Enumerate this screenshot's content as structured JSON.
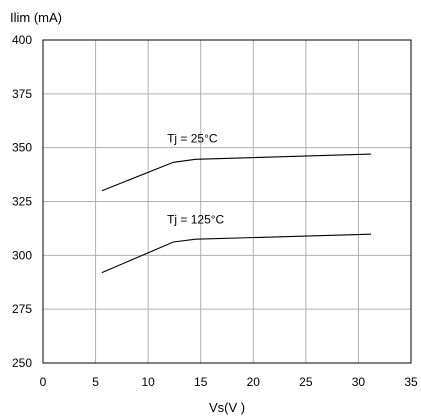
{
  "chart_data": {
    "type": "line",
    "xlabel": "Vs(V )",
    "ylabel": "Ilim (mA)",
    "xlim": [
      0,
      35
    ],
    "ylim": [
      250,
      400
    ],
    "x_ticks": [
      0,
      5,
      10,
      15,
      20,
      25,
      30,
      35
    ],
    "y_ticks": [
      250,
      275,
      300,
      325,
      350,
      375,
      400
    ],
    "grid": true,
    "series": [
      {
        "name": "Tj = 25°C",
        "x": [
          5.6,
          12.4,
          14.5,
          31.2
        ],
        "y": [
          330,
          343.2,
          344.6,
          347
        ]
      },
      {
        "name": "Tj = 125°C",
        "x": [
          5.6,
          12.4,
          14.5,
          31.2
        ],
        "y": [
          292,
          306.2,
          307.5,
          309.8
        ]
      }
    ],
    "annotations": [
      {
        "text": "Tj = 25°C",
        "x": 11.8,
        "y": 352.5
      },
      {
        "text": "Tj = 125°C",
        "x": 11.8,
        "y": 314.8
      }
    ]
  }
}
